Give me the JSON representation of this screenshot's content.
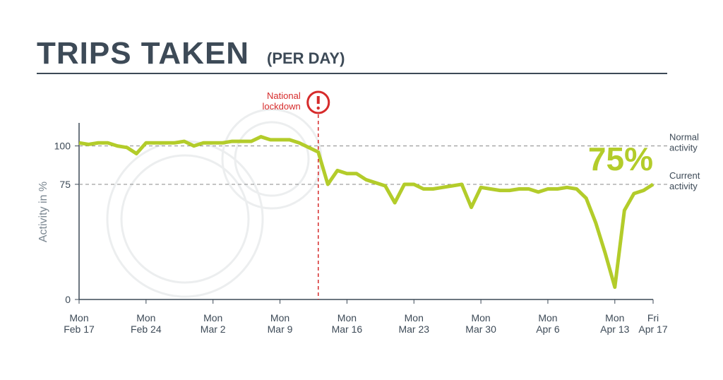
{
  "chart_data": {
    "type": "line",
    "title": "TRIPS TAKEN",
    "subtitle": "(PER DAY)",
    "y_label": "Activity in %",
    "categories": [
      "Mon\nFeb 17",
      null,
      null,
      null,
      null,
      null,
      null,
      "Mon\nFeb 24",
      null,
      null,
      null,
      null,
      null,
      null,
      "Mon\nMar 2",
      null,
      null,
      null,
      null,
      null,
      null,
      "Mon\nMar 9",
      null,
      null,
      null,
      null,
      null,
      null,
      "Mon\nMar 16",
      null,
      null,
      null,
      null,
      null,
      null,
      "Mon\nMar 23",
      null,
      null,
      null,
      null,
      null,
      null,
      "Mon\nMar 30",
      null,
      null,
      null,
      null,
      null,
      null,
      "Mon\nApr 6",
      null,
      null,
      null,
      null,
      null,
      null,
      "Mon\nApr 13",
      null,
      null,
      null,
      "Fri\nApr 17"
    ],
    "series": [
      {
        "name": "Trips taken",
        "color": "#b3cc2a",
        "values": [
          102,
          101,
          102,
          102,
          100,
          99,
          95,
          102,
          102,
          102,
          102,
          103,
          100,
          102,
          102,
          102,
          103,
          103,
          103,
          106,
          104,
          104,
          104,
          102,
          99,
          96,
          75,
          84,
          82,
          82,
          78,
          76,
          74,
          63,
          75,
          75,
          72,
          72,
          73,
          74,
          75,
          60,
          73,
          72,
          71,
          71,
          72,
          72,
          70,
          72,
          72,
          73,
          72,
          66,
          50,
          30,
          8,
          58,
          69,
          71,
          75
        ],
        "value_labels": [
          null,
          null,
          null,
          null,
          null,
          null,
          null,
          null,
          null,
          null,
          null,
          null,
          null,
          null,
          null,
          null,
          null,
          null,
          null,
          null,
          null,
          null,
          null,
          null,
          null,
          null,
          null,
          null,
          null,
          null,
          null,
          null,
          null,
          null,
          null,
          null,
          null,
          null,
          null,
          null,
          null,
          null,
          null,
          null,
          null,
          null,
          null,
          null,
          null,
          null,
          null,
          null,
          null,
          null,
          null,
          null,
          null,
          null,
          null,
          null,
          "75%"
        ]
      }
    ],
    "ylim": [
      0,
      115
    ],
    "yticks": [
      0,
      75,
      100
    ],
    "grid": true,
    "annotations": [
      {
        "text": "National\nlockdown",
        "x": 25,
        "color": "#d62b2b"
      },
      {
        "text": "Normal\nactivity",
        "y": 100
      },
      {
        "text": "Current\nactivity",
        "y": 75
      }
    ]
  }
}
